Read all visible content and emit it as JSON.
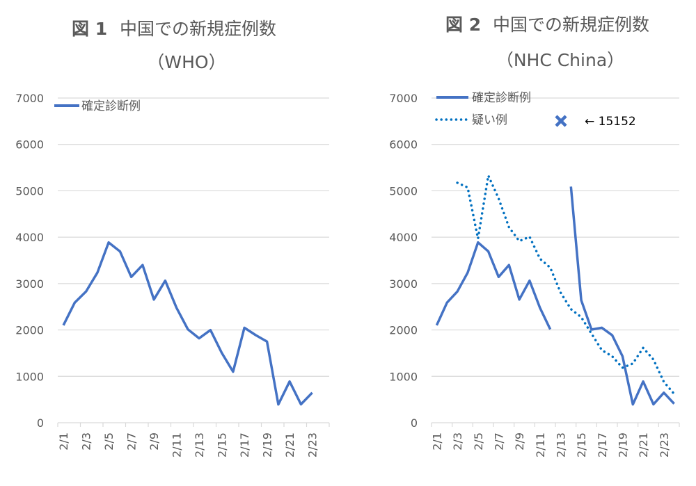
{
  "chart_data": [
    {
      "type": "line",
      "title_prefix": "図 1",
      "title": "中国での新規症例数",
      "subtitle": "（WHO）",
      "ylim": [
        0,
        7000
      ],
      "yticks": [
        "0",
        "1000",
        "2000",
        "3000",
        "4000",
        "5000",
        "6000",
        "7000"
      ],
      "grid": true,
      "legend_position": "top-left",
      "categories": [
        "2/1",
        "2/2",
        "2/3",
        "2/4",
        "2/5",
        "2/6",
        "2/7",
        "2/8",
        "2/9",
        "2/10",
        "2/11",
        "2/12",
        "2/13",
        "2/14",
        "2/15",
        "2/16",
        "2/17",
        "2/18",
        "2/19",
        "2/20",
        "2/21",
        "2/22",
        "2/23",
        "2/24"
      ],
      "xtick_labels": [
        "2/1",
        "2/3",
        "2/5",
        "2/7",
        "2/9",
        "2/11",
        "2/13",
        "2/15",
        "2/17",
        "2/19",
        "2/21",
        "2/23"
      ],
      "series": [
        {
          "name": "確定診断例",
          "style": "solid",
          "color": "#4472C4",
          "values": [
            2102,
            2590,
            2829,
            3235,
            3887,
            3694,
            3143,
            3399,
            2656,
            3062,
            2478,
            2015,
            1820,
            1998,
            1506,
            1100,
            2048,
            1888,
            1749,
            394,
            889,
            397,
            648,
            null
          ]
        }
      ]
    },
    {
      "type": "line",
      "title_prefix": "図 2",
      "title": "中国での新規症例数",
      "subtitle": "（NHC China）",
      "ylim": [
        0,
        7000
      ],
      "yticks": [
        "0",
        "1000",
        "2000",
        "3000",
        "4000",
        "5000",
        "6000",
        "7000"
      ],
      "grid": true,
      "legend_position": "top-left",
      "categories": [
        "2/1",
        "2/2",
        "2/3",
        "2/4",
        "2/5",
        "2/6",
        "2/7",
        "2/8",
        "2/9",
        "2/10",
        "2/11",
        "2/12",
        "2/13",
        "2/14",
        "2/15",
        "2/16",
        "2/17",
        "2/18",
        "2/19",
        "2/20",
        "2/21",
        "2/22",
        "2/23",
        "2/24"
      ],
      "xtick_labels": [
        "2/1",
        "2/3",
        "2/5",
        "2/7",
        "2/9",
        "2/11",
        "2/13",
        "2/15",
        "2/17",
        "2/19",
        "2/21",
        "2/23"
      ],
      "series": [
        {
          "name": "確定診断例",
          "style": "solid",
          "color": "#4472C4",
          "values": [
            2102,
            2590,
            2829,
            3235,
            3887,
            3694,
            3143,
            3399,
            2656,
            3062,
            2478,
            2015,
            null,
            5090,
            2641,
            2009,
            2048,
            1886,
            1433,
            394,
            889,
            397,
            648,
            409
          ]
        },
        {
          "name": "疑い例",
          "style": "dotted",
          "color": "#0070C0",
          "values": [
            null,
            null,
            5173,
            5072,
            3971,
            5328,
            4833,
            4214,
            3916,
            4008,
            3536,
            3342,
            2807,
            2450,
            2277,
            1918,
            1563,
            1432,
            1185,
            1277,
            1614,
            1361,
            882,
            620
          ]
        }
      ],
      "annotation": {
        "marker": "x-icon",
        "text": "← 15152",
        "category": "2/13",
        "value": 15152,
        "color": "#4472C4"
      }
    }
  ]
}
